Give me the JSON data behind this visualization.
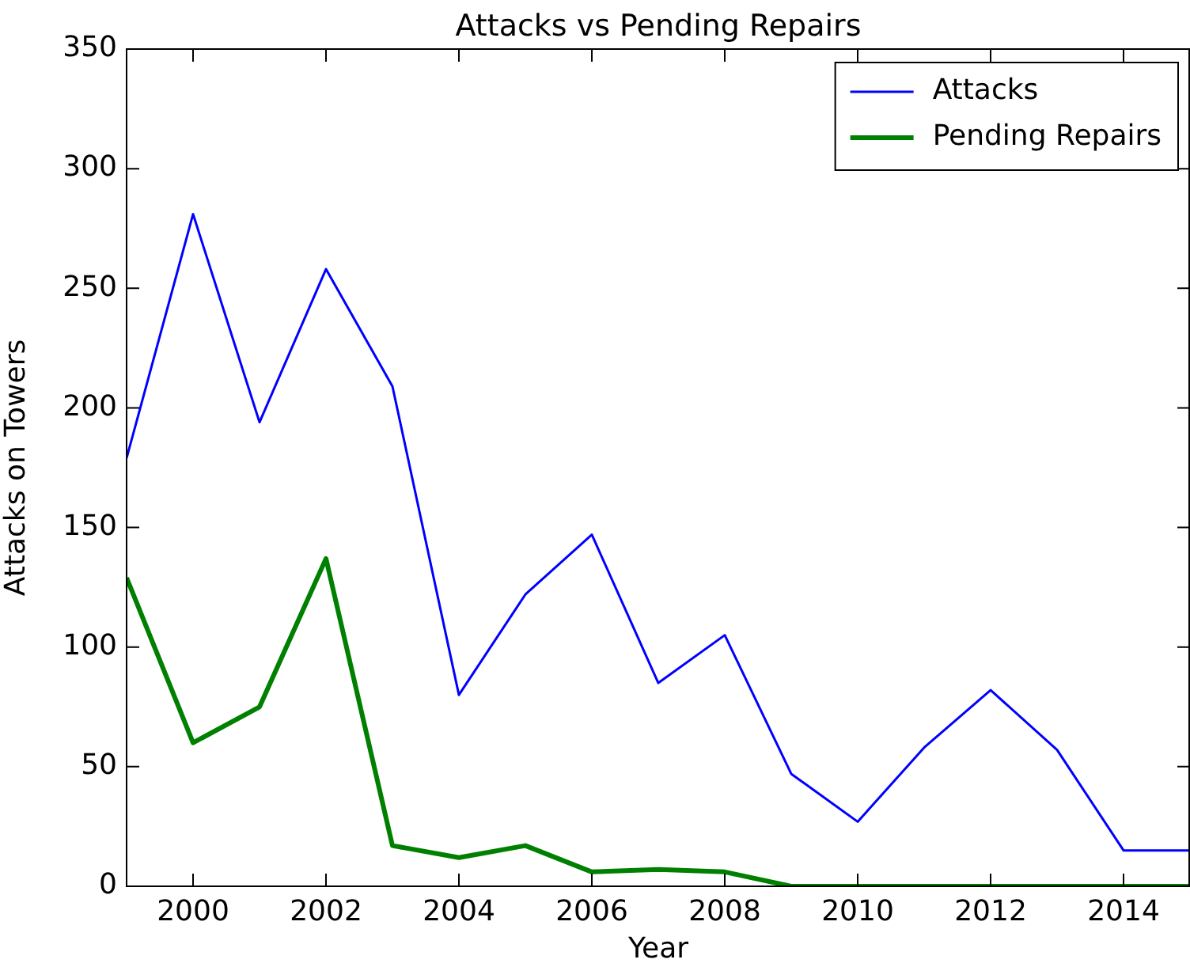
{
  "chart_data": {
    "type": "line",
    "title": "Attacks vs Pending Repairs",
    "xlabel": "Year",
    "ylabel": "Attacks on Towers",
    "x": [
      1999,
      2000,
      2001,
      2002,
      2003,
      2004,
      2005,
      2006,
      2007,
      2008,
      2009,
      2010,
      2011,
      2012,
      2013,
      2014,
      2015
    ],
    "series": [
      {
        "name": "Attacks",
        "color": "#0000ff",
        "values": [
          179,
          281,
          194,
          258,
          209,
          80,
          122,
          147,
          85,
          105,
          47,
          27,
          58,
          82,
          57,
          15,
          15
        ]
      },
      {
        "name": "Pending Repairs",
        "color": "#008000",
        "values": [
          129,
          60,
          75,
          137,
          17,
          12,
          17,
          6,
          7,
          6,
          0,
          0,
          0,
          0,
          0,
          0,
          0
        ]
      }
    ],
    "xlim": [
      1999,
      2015
    ],
    "xticks": [
      2000,
      2002,
      2004,
      2006,
      2008,
      2010,
      2012,
      2014
    ],
    "ylim": [
      0,
      350
    ],
    "yticks": [
      0,
      50,
      100,
      150,
      200,
      250,
      300,
      350
    ],
    "grid": false,
    "legend": "top right",
    "marker": "none",
    "line_style": "solid"
  }
}
